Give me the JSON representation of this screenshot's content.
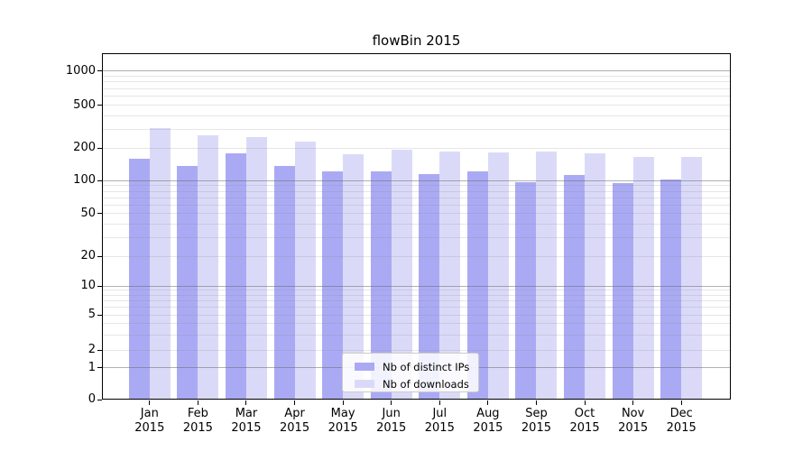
{
  "chart_data": {
    "type": "bar",
    "title": "flowBin 2015",
    "categories": [
      "Jan 2015",
      "Feb 2015",
      "Mar 2015",
      "Apr 2015",
      "May 2015",
      "Jun 2015",
      "Jul 2015",
      "Aug 2015",
      "Sep 2015",
      "Oct 2015",
      "Nov 2015",
      "Dec 2015"
    ],
    "series": [
      {
        "name": "Nb of distinct IPs",
        "color": "#aaaaf4",
        "values": [
          160,
          137,
          180,
          137,
          122,
          123,
          115,
          123,
          97,
          113,
          95,
          102
        ]
      },
      {
        "name": "Nb of downloads",
        "color": "#dadaf8",
        "values": [
          310,
          265,
          255,
          228,
          177,
          193,
          185,
          182,
          185,
          178,
          165,
          166
        ]
      }
    ],
    "xlabel": "",
    "ylabel": "",
    "yscale": "log-like (0,1,2,5,10,20,50,100,200,500,1000)",
    "y_ticks": [
      0,
      1,
      2,
      5,
      10,
      20,
      50,
      100,
      200,
      500,
      1000
    ],
    "y_minor_gridlines": [
      2,
      3,
      4,
      5,
      6,
      7,
      8,
      9,
      20,
      30,
      40,
      50,
      60,
      70,
      80,
      90,
      200,
      300,
      400,
      500,
      600,
      700,
      800,
      900
    ],
    "y_major_gridlines": [
      1,
      10,
      100,
      1000
    ],
    "ylim": [
      0,
      1400
    ],
    "grid": true,
    "legend_position": "inside lower center"
  },
  "colors": {
    "background": "#ffffff",
    "bar_distinct_ips": "#aaaaf4",
    "bar_downloads": "#dadaf8",
    "grid_major": "#b0b0b0",
    "grid_minor": "#e9e9e9",
    "spine": "#000000",
    "legend_border": "#cccccc",
    "text": "#000000"
  }
}
